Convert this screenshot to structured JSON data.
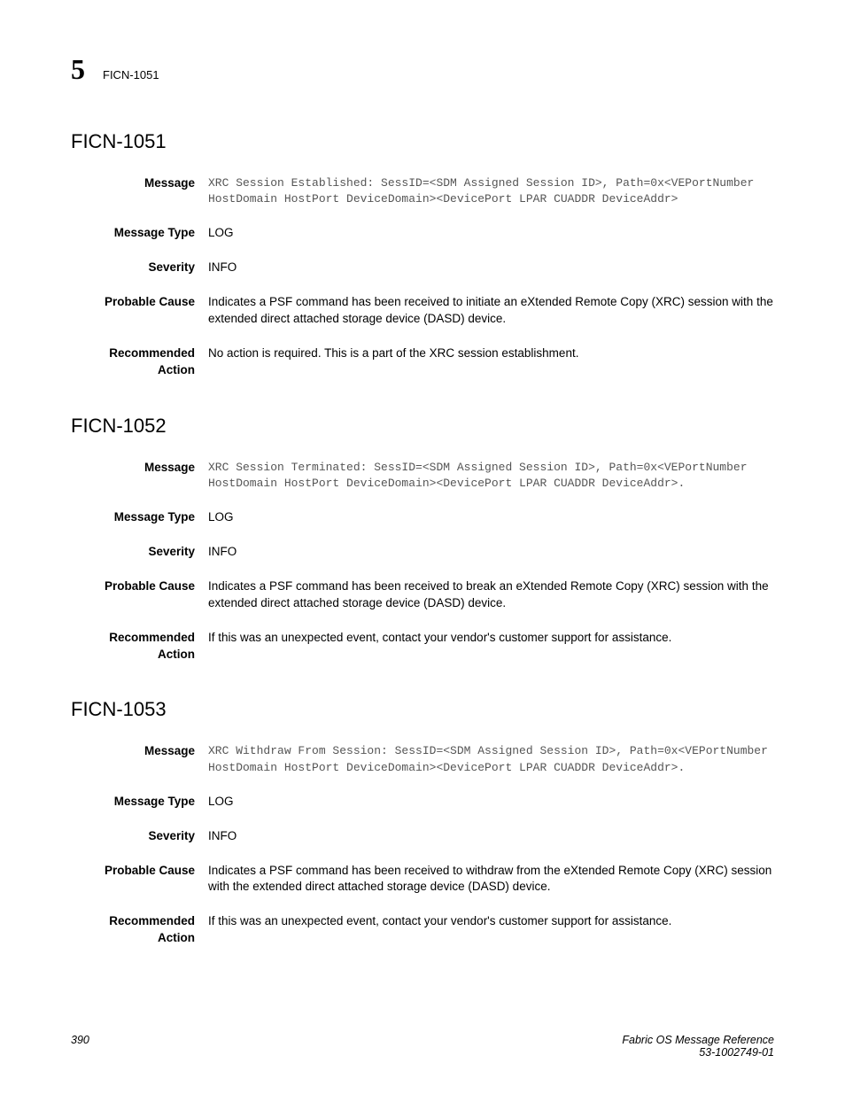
{
  "header": {
    "chapter_number": "5",
    "code": "FICN-1051"
  },
  "labels": {
    "message": "Message",
    "message_type": "Message Type",
    "severity": "Severity",
    "probable_cause": "Probable Cause",
    "recommended_action": "Recommended Action"
  },
  "sections": [
    {
      "title": "FICN-1051",
      "message": "XRC Session Established: SessID=<SDM Assigned Session ID>, Path=0x<VEPortNumber HostDomain HostPort DeviceDomain><DevicePort LPAR CUADDR DeviceAddr>",
      "message_type": "LOG",
      "severity": "INFO",
      "probable_cause": "Indicates a PSF command has been received to initiate an eXtended Remote Copy (XRC) session with the extended direct attached storage device (DASD) device.",
      "recommended_action": "No action is required. This is a part of the XRC session establishment."
    },
    {
      "title": "FICN-1052",
      "message": "XRC Session Terminated: SessID=<SDM Assigned Session ID>, Path=0x<VEPortNumber HostDomain HostPort DeviceDomain><DevicePort LPAR CUADDR DeviceAddr>.",
      "message_type": "LOG",
      "severity": "INFO",
      "probable_cause": "Indicates a PSF command has been received to break an eXtended Remote Copy (XRC) session with the extended direct attached storage device (DASD) device.",
      "recommended_action": "If this was an unexpected event, contact your vendor's customer support for assistance."
    },
    {
      "title": "FICN-1053",
      "message": "XRC Withdraw From Session: SessID=<SDM Assigned Session ID>, Path=0x<VEPortNumber HostDomain HostPort DeviceDomain><DevicePort LPAR CUADDR DeviceAddr>.",
      "message_type": "LOG",
      "severity": "INFO",
      "probable_cause": "Indicates a PSF command has been received to withdraw from the eXtended Remote Copy (XRC) session with the extended direct attached storage device (DASD) device.",
      "recommended_action": "If this was an unexpected event, contact your vendor's customer support for assistance."
    }
  ],
  "footer": {
    "page_number": "390",
    "doc_title": "Fabric OS Message Reference",
    "doc_id": "53-1002749-01"
  }
}
